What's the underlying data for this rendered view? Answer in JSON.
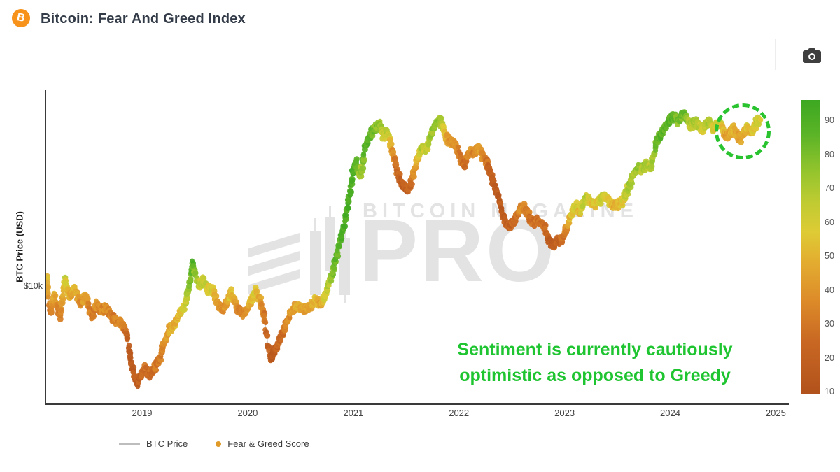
{
  "header": {
    "title": "Bitcoin: Fear And Greed Index",
    "logo_letter": "B"
  },
  "watermark": {
    "line1": "BITCOIN MAGAZINE",
    "line2": "PRO"
  },
  "annotation": {
    "line1": "Sentiment is currently cautiously",
    "line2": "optimistic as opposed to Greedy",
    "color": "#1fc431"
  },
  "axes": {
    "y_title": "BTC Price (USD)",
    "y_tick_label": "$10k",
    "x_ticks": [
      2019,
      2020,
      2021,
      2022,
      2023,
      2024,
      2025
    ]
  },
  "colorbar": {
    "ticks": [
      90,
      80,
      70,
      60,
      50,
      40,
      30,
      20,
      10
    ]
  },
  "legend": {
    "btc_label": "BTC Price",
    "fg_label": "Fear & Greed Score",
    "fg_dot_color": "#e09a28",
    "line_color": "#bdbdbd"
  },
  "chart_data": {
    "type": "scatter",
    "title": "Bitcoin: Fear And Greed Index",
    "ylabel": "BTC Price (USD)",
    "y_scale": "log",
    "x_range": [
      2018.08,
      2025.1
    ],
    "color_by": "Fear & Greed Score (0-100)",
    "color_scale": [
      [
        0,
        "#b2521c"
      ],
      [
        18,
        "#c96823"
      ],
      [
        32,
        "#dd8c29"
      ],
      [
        45,
        "#e3ad30"
      ],
      [
        55,
        "#decb35"
      ],
      [
        65,
        "#c0cb32"
      ],
      [
        75,
        "#97c52d"
      ],
      [
        88,
        "#5cb427"
      ],
      [
        100,
        "#3ca821"
      ]
    ],
    "highlight_circle": {
      "center_year": 2024.63,
      "center_price": 56000
    },
    "points_format": [
      "decimal_year",
      "btc_price_usd",
      "fear_greed_score"
    ],
    "points": [
      [
        2018.09,
        8900,
        35
      ],
      [
        2018.1,
        11300,
        55
      ],
      [
        2018.13,
        7300,
        25
      ],
      [
        2018.17,
        9200,
        45
      ],
      [
        2018.22,
        7000,
        22
      ],
      [
        2018.27,
        10800,
        60
      ],
      [
        2018.32,
        8900,
        40
      ],
      [
        2018.36,
        9800,
        50
      ],
      [
        2018.42,
        8200,
        30
      ],
      [
        2018.46,
        9200,
        42
      ],
      [
        2018.52,
        7000,
        22
      ],
      [
        2018.57,
        8200,
        35
      ],
      [
        2018.62,
        7600,
        30
      ],
      [
        2018.66,
        7900,
        36
      ],
      [
        2018.72,
        7000,
        25
      ],
      [
        2018.77,
        6700,
        28
      ],
      [
        2018.81,
        6600,
        30
      ],
      [
        2018.86,
        5800,
        15
      ],
      [
        2018.88,
        4700,
        10
      ],
      [
        2018.91,
        3900,
        8
      ],
      [
        2018.95,
        3300,
        10
      ],
      [
        2018.99,
        3600,
        13
      ],
      [
        2019.03,
        4000,
        20
      ],
      [
        2019.07,
        3600,
        15
      ],
      [
        2019.11,
        3900,
        22
      ],
      [
        2019.17,
        4500,
        28
      ],
      [
        2019.21,
        5300,
        35
      ],
      [
        2019.26,
        6200,
        42
      ],
      [
        2019.31,
        6500,
        45
      ],
      [
        2019.35,
        7300,
        50
      ],
      [
        2019.39,
        7700,
        58
      ],
      [
        2019.43,
        9200,
        70
      ],
      [
        2019.46,
        11300,
        82
      ],
      [
        2019.48,
        13000,
        92
      ],
      [
        2019.51,
        11500,
        75
      ],
      [
        2019.54,
        10100,
        62
      ],
      [
        2019.58,
        10800,
        68
      ],
      [
        2019.62,
        9600,
        55
      ],
      [
        2019.66,
        9800,
        60
      ],
      [
        2019.71,
        8400,
        42
      ],
      [
        2019.76,
        7600,
        30
      ],
      [
        2019.81,
        8500,
        40
      ],
      [
        2019.84,
        9400,
        55
      ],
      [
        2019.9,
        7900,
        32
      ],
      [
        2019.94,
        7300,
        27
      ],
      [
        2019.99,
        7600,
        33
      ],
      [
        2020.03,
        8400,
        45
      ],
      [
        2020.07,
        9600,
        58
      ],
      [
        2020.12,
        8500,
        42
      ],
      [
        2020.16,
        7000,
        22
      ],
      [
        2020.19,
        5300,
        12
      ],
      [
        2020.22,
        4400,
        8
      ],
      [
        2020.25,
        4700,
        10
      ],
      [
        2020.29,
        5300,
        15
      ],
      [
        2020.32,
        5700,
        18
      ],
      [
        2020.36,
        6500,
        25
      ],
      [
        2020.4,
        7300,
        35
      ],
      [
        2020.45,
        7900,
        42
      ],
      [
        2020.5,
        8000,
        44
      ],
      [
        2020.56,
        7700,
        40
      ],
      [
        2020.6,
        8200,
        45
      ],
      [
        2020.65,
        8700,
        52
      ],
      [
        2020.69,
        8000,
        42
      ],
      [
        2020.74,
        9200,
        60
      ],
      [
        2020.78,
        10800,
        72
      ],
      [
        2020.82,
        12700,
        82
      ],
      [
        2020.86,
        15500,
        88
      ],
      [
        2020.9,
        18900,
        92
      ],
      [
        2020.94,
        23900,
        94
      ],
      [
        2020.97,
        29200,
        93
      ],
      [
        2021.0,
        37000,
        95
      ],
      [
        2021.03,
        41700,
        90
      ],
      [
        2021.06,
        34200,
        70
      ],
      [
        2021.09,
        40100,
        78
      ],
      [
        2021.11,
        48900,
        88
      ],
      [
        2021.15,
        54800,
        90
      ],
      [
        2021.18,
        58300,
        85
      ],
      [
        2021.21,
        61100,
        80
      ],
      [
        2021.25,
        63000,
        76
      ],
      [
        2021.29,
        54800,
        60
      ],
      [
        2021.32,
        59600,
        68
      ],
      [
        2021.35,
        50800,
        45
      ],
      [
        2021.39,
        41700,
        25
      ],
      [
        2021.42,
        36100,
        18
      ],
      [
        2021.45,
        32900,
        12
      ],
      [
        2021.49,
        30800,
        10
      ],
      [
        2021.52,
        29900,
        12
      ],
      [
        2021.55,
        32900,
        20
      ],
      [
        2021.58,
        38500,
        35
      ],
      [
        2021.62,
        44500,
        55
      ],
      [
        2021.65,
        48900,
        68
      ],
      [
        2021.68,
        47000,
        60
      ],
      [
        2021.72,
        52800,
        70
      ],
      [
        2021.75,
        58300,
        75
      ],
      [
        2021.78,
        64500,
        78
      ],
      [
        2021.82,
        67100,
        72
      ],
      [
        2021.85,
        61100,
        60
      ],
      [
        2021.88,
        54800,
        45
      ],
      [
        2021.92,
        50800,
        35
      ],
      [
        2021.95,
        52800,
        40
      ],
      [
        2021.98,
        48900,
        32
      ],
      [
        2022.02,
        42400,
        22
      ],
      [
        2022.05,
        40100,
        20
      ],
      [
        2022.08,
        43500,
        28
      ],
      [
        2022.11,
        47000,
        35
      ],
      [
        2022.15,
        45200,
        30
      ],
      [
        2022.18,
        48200,
        40
      ],
      [
        2022.21,
        45900,
        35
      ],
      [
        2022.25,
        42400,
        25
      ],
      [
        2022.28,
        38500,
        18
      ],
      [
        2022.31,
        34200,
        12
      ],
      [
        2022.35,
        30300,
        10
      ],
      [
        2022.38,
        26900,
        8
      ],
      [
        2022.41,
        23000,
        8
      ],
      [
        2022.45,
        20400,
        10
      ],
      [
        2022.48,
        19600,
        12
      ],
      [
        2022.51,
        20700,
        18
      ],
      [
        2022.55,
        22100,
        22
      ],
      [
        2022.58,
        23900,
        30
      ],
      [
        2022.61,
        24900,
        33
      ],
      [
        2022.65,
        23000,
        25
      ],
      [
        2022.68,
        21200,
        20
      ],
      [
        2022.71,
        20700,
        22
      ],
      [
        2022.74,
        21200,
        25
      ],
      [
        2022.78,
        20400,
        20
      ],
      [
        2022.81,
        19600,
        22
      ],
      [
        2022.84,
        17400,
        12
      ],
      [
        2022.88,
        16100,
        10
      ],
      [
        2022.91,
        16400,
        12
      ],
      [
        2022.94,
        16800,
        15
      ],
      [
        2022.98,
        17200,
        18
      ],
      [
        2023.01,
        18900,
        30
      ],
      [
        2023.04,
        21200,
        45
      ],
      [
        2023.08,
        23900,
        55
      ],
      [
        2023.11,
        24900,
        60
      ],
      [
        2023.14,
        23000,
        50
      ],
      [
        2023.18,
        25900,
        62
      ],
      [
        2023.21,
        27600,
        65
      ],
      [
        2023.24,
        26300,
        58
      ],
      [
        2023.27,
        25500,
        52
      ],
      [
        2023.31,
        25900,
        55
      ],
      [
        2023.34,
        26900,
        60
      ],
      [
        2023.37,
        28500,
        65
      ],
      [
        2023.41,
        26900,
        55
      ],
      [
        2023.44,
        25500,
        50
      ],
      [
        2023.47,
        24900,
        45
      ],
      [
        2023.51,
        25500,
        48
      ],
      [
        2023.54,
        26300,
        52
      ],
      [
        2023.57,
        28000,
        60
      ],
      [
        2023.61,
        31500,
        70
      ],
      [
        2023.64,
        34200,
        74
      ],
      [
        2023.67,
        37000,
        72
      ],
      [
        2023.71,
        39100,
        74
      ],
      [
        2023.74,
        37900,
        68
      ],
      [
        2023.77,
        40100,
        72
      ],
      [
        2023.81,
        38500,
        65
      ],
      [
        2023.84,
        42400,
        74
      ],
      [
        2023.87,
        52800,
        82
      ],
      [
        2023.9,
        54800,
        88
      ],
      [
        2023.94,
        59600,
        90
      ],
      [
        2023.97,
        63000,
        88
      ],
      [
        2024.0,
        67100,
        90
      ],
      [
        2024.04,
        69700,
        88
      ],
      [
        2024.07,
        66000,
        80
      ],
      [
        2024.1,
        68200,
        82
      ],
      [
        2024.14,
        70800,
        85
      ],
      [
        2024.17,
        64500,
        70
      ],
      [
        2024.2,
        62000,
        65
      ],
      [
        2024.24,
        66000,
        72
      ],
      [
        2024.27,
        63000,
        68
      ],
      [
        2024.3,
        59600,
        60
      ],
      [
        2024.34,
        63000,
        65
      ],
      [
        2024.37,
        66000,
        70
      ],
      [
        2024.4,
        59600,
        55
      ],
      [
        2024.43,
        62000,
        58
      ],
      [
        2024.47,
        64500,
        62
      ],
      [
        2024.5,
        59600,
        50
      ],
      [
        2024.53,
        54800,
        40
      ],
      [
        2024.57,
        57300,
        45
      ],
      [
        2024.6,
        60600,
        50
      ],
      [
        2024.63,
        56300,
        42
      ],
      [
        2024.67,
        53600,
        38
      ],
      [
        2024.7,
        58300,
        48
      ],
      [
        2024.73,
        61100,
        55
      ],
      [
        2024.77,
        57300,
        45
      ],
      [
        2024.8,
        62000,
        58
      ],
      [
        2024.83,
        66000,
        65
      ],
      [
        2024.85,
        64500,
        60
      ]
    ]
  }
}
